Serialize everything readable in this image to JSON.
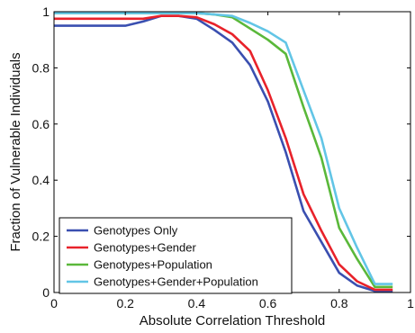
{
  "chart_data": {
    "type": "line",
    "xlabel": "Absolute Correlation Threshold",
    "ylabel": "Fraction of Vulnerable Individuals",
    "xlim": [
      0,
      1
    ],
    "ylim": [
      0,
      1
    ],
    "x_ticks": [
      "0",
      "0.2",
      "0.4",
      "0.6",
      "0.8",
      "1"
    ],
    "y_ticks": [
      "0",
      "0.2",
      "0.4",
      "0.6",
      "0.8",
      "1"
    ],
    "grid": false,
    "legend_position": "bottom-left",
    "series": [
      {
        "name": "Genotypes Only",
        "color": "#3a4fb0",
        "points": [
          [
            0,
            0.95
          ],
          [
            0.05,
            0.95
          ],
          [
            0.1,
            0.95
          ],
          [
            0.15,
            0.95
          ],
          [
            0.2,
            0.95
          ],
          [
            0.25,
            0.965
          ],
          [
            0.3,
            0.985
          ],
          [
            0.35,
            0.985
          ],
          [
            0.4,
            0.975
          ],
          [
            0.45,
            0.935
          ],
          [
            0.5,
            0.89
          ],
          [
            0.55,
            0.81
          ],
          [
            0.6,
            0.68
          ],
          [
            0.65,
            0.5
          ],
          [
            0.7,
            0.29
          ],
          [
            0.75,
            0.18
          ],
          [
            0.8,
            0.07
          ],
          [
            0.85,
            0.025
          ],
          [
            0.9,
            0.005
          ],
          [
            0.95,
            0.005
          ]
        ]
      },
      {
        "name": "Genotypes+Gender",
        "color": "#e8222a",
        "points": [
          [
            0,
            0.975
          ],
          [
            0.05,
            0.975
          ],
          [
            0.1,
            0.975
          ],
          [
            0.15,
            0.975
          ],
          [
            0.2,
            0.975
          ],
          [
            0.25,
            0.975
          ],
          [
            0.3,
            0.985
          ],
          [
            0.35,
            0.985
          ],
          [
            0.4,
            0.98
          ],
          [
            0.45,
            0.955
          ],
          [
            0.5,
            0.92
          ],
          [
            0.55,
            0.86
          ],
          [
            0.6,
            0.72
          ],
          [
            0.65,
            0.55
          ],
          [
            0.7,
            0.35
          ],
          [
            0.75,
            0.22
          ],
          [
            0.8,
            0.1
          ],
          [
            0.85,
            0.04
          ],
          [
            0.9,
            0.01
          ],
          [
            0.95,
            0.01
          ]
        ]
      },
      {
        "name": "Genotypes+Population",
        "color": "#5ab83a",
        "points": [
          [
            0,
            0.995
          ],
          [
            0.05,
            0.995
          ],
          [
            0.1,
            0.995
          ],
          [
            0.15,
            0.995
          ],
          [
            0.2,
            0.995
          ],
          [
            0.25,
            0.995
          ],
          [
            0.3,
            0.995
          ],
          [
            0.35,
            0.995
          ],
          [
            0.4,
            0.995
          ],
          [
            0.45,
            0.99
          ],
          [
            0.5,
            0.98
          ],
          [
            0.55,
            0.94
          ],
          [
            0.6,
            0.9
          ],
          [
            0.65,
            0.85
          ],
          [
            0.7,
            0.66
          ],
          [
            0.75,
            0.48
          ],
          [
            0.8,
            0.23
          ],
          [
            0.85,
            0.12
          ],
          [
            0.9,
            0.02
          ],
          [
            0.95,
            0.02
          ]
        ]
      },
      {
        "name": "Genotypes+Gender+Population",
        "color": "#62c5e6",
        "points": [
          [
            0,
            0.995
          ],
          [
            0.05,
            0.995
          ],
          [
            0.1,
            0.995
          ],
          [
            0.15,
            0.995
          ],
          [
            0.2,
            0.995
          ],
          [
            0.25,
            0.995
          ],
          [
            0.3,
            0.995
          ],
          [
            0.35,
            0.995
          ],
          [
            0.4,
            0.995
          ],
          [
            0.45,
            0.99
          ],
          [
            0.5,
            0.985
          ],
          [
            0.55,
            0.96
          ],
          [
            0.6,
            0.93
          ],
          [
            0.65,
            0.89
          ],
          [
            0.7,
            0.72
          ],
          [
            0.75,
            0.55
          ],
          [
            0.8,
            0.3
          ],
          [
            0.85,
            0.16
          ],
          [
            0.9,
            0.03
          ],
          [
            0.95,
            0.03
          ]
        ]
      }
    ]
  }
}
